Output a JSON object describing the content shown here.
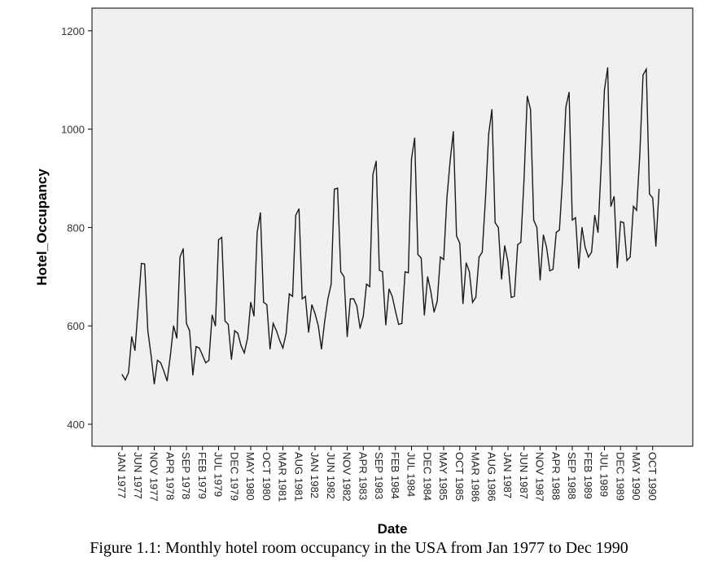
{
  "chart_data": {
    "type": "line",
    "title": "",
    "xlabel": "Date",
    "ylabel": "Hotel_Occupancy",
    "ylim": [
      370,
      1260
    ],
    "yticks": [
      400,
      600,
      800,
      1000,
      1200
    ],
    "grid": false,
    "x_start": "JAN 1977",
    "x_end": "DEC 1990",
    "xtick_labels": [
      "JAN 1977",
      "JUN 1977",
      "NOV 1977",
      "APR 1978",
      "SEP 1978",
      "FEB 1979",
      "JUL 1979",
      "DEC 1979",
      "MAY 1980",
      "OCT 1980",
      "MAR 1981",
      "AUG 1981",
      "JAN 1982",
      "JUN 1982",
      "NOV 1982",
      "APR 1983",
      "SEP 1983",
      "FEB 1984",
      "JUL 1984",
      "DEC 1984",
      "MAY 1985",
      "OCT 1985",
      "MAR 1986",
      "AUG 1986",
      "JAN 1987",
      "JUN 1987",
      "NOV 1987",
      "APR 1988",
      "SEP 1988",
      "FEB 1989",
      "JUL 1989",
      "DEC 1989",
      "MAY 1990",
      "OCT 1990"
    ],
    "values": [
      501,
      490,
      505,
      578,
      550,
      640,
      727,
      726,
      590,
      540,
      482,
      530,
      525,
      508,
      488,
      540,
      600,
      575,
      740,
      757,
      605,
      590,
      500,
      558,
      555,
      540,
      525,
      530,
      622,
      600,
      775,
      780,
      610,
      603,
      532,
      590,
      585,
      560,
      545,
      575,
      648,
      620,
      790,
      830,
      648,
      643,
      553,
      605,
      590,
      570,
      555,
      585,
      665,
      660,
      825,
      838,
      655,
      660,
      587,
      643,
      625,
      600,
      553,
      610,
      655,
      685,
      878,
      880,
      710,
      700,
      578,
      655,
      655,
      640,
      595,
      620,
      685,
      680,
      908,
      935,
      713,
      710,
      602,
      675,
      660,
      630,
      603,
      605,
      710,
      708,
      940,
      982,
      745,
      738,
      622,
      700,
      670,
      628,
      650,
      740,
      735,
      860,
      935,
      995,
      783,
      768,
      645,
      728,
      710,
      648,
      658,
      740,
      750,
      860,
      990,
      1040,
      810,
      800,
      695,
      763,
      730,
      658,
      660,
      765,
      770,
      900,
      1067,
      1040,
      815,
      800,
      693,
      785,
      760,
      712,
      715,
      790,
      795,
      900,
      1045,
      1075,
      815,
      820,
      717,
      800,
      760,
      740,
      750,
      825,
      790,
      930,
      1080,
      1125,
      843,
      863,
      718,
      812,
      810,
      733,
      740,
      843,
      835,
      950,
      1110,
      1122,
      868,
      860,
      762,
      878
    ],
    "colors": {
      "plot_bg": "#f0f0f0",
      "line": "#1a1a1a"
    }
  },
  "caption": "Figure 1.1:  Monthly hotel room occupancy in the USA from Jan 1977 to Dec 1990"
}
